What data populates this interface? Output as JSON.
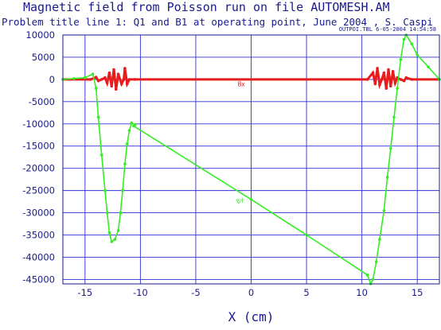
{
  "chart_data": {
    "type": "line",
    "title": "Magnetic field from Poisson run on file AUTOMESH.AM",
    "subtitle": "Problem title line 1: Q1 and B1  at operating point, June 2004 , S. Caspi",
    "file_stamp": "OUTPOI.TBL   6-05-2004  14:54:58",
    "xlabel": "X (cm)",
    "ylabel": "",
    "xlim": [
      -17,
      17
    ],
    "ylim": [
      -46000,
      10000
    ],
    "x_ticks": [
      -15,
      -10,
      -5,
      0,
      5,
      10,
      15
    ],
    "y_ticks": [
      10000,
      5000,
      0,
      -5000,
      -10000,
      -15000,
      -20000,
      -25000,
      -30000,
      -35000,
      -40000,
      -45000
    ],
    "grid": true,
    "series": [
      {
        "name": "Bx",
        "color": "#e81c1c",
        "label_at": [
          -1.2,
          -1500
        ],
        "points": [
          [
            -17,
            0
          ],
          [
            -14.5,
            0
          ],
          [
            -14,
            500
          ],
          [
            -13.8,
            -300
          ],
          [
            -13.5,
            0
          ],
          [
            -13.2,
            400
          ],
          [
            -13.0,
            -800
          ],
          [
            -12.8,
            1500
          ],
          [
            -12.6,
            -1500
          ],
          [
            -12.4,
            2200
          ],
          [
            -12.2,
            -2200
          ],
          [
            -12.0,
            1200
          ],
          [
            -11.7,
            -1000
          ],
          [
            -11.5,
            0
          ],
          [
            -11.4,
            2500
          ],
          [
            -11.2,
            -1000
          ],
          [
            -11.0,
            0
          ],
          [
            -10.5,
            0
          ],
          [
            10.5,
            0
          ],
          [
            11.0,
            1500
          ],
          [
            11.2,
            -1000
          ],
          [
            11.4,
            2500
          ],
          [
            11.6,
            -1200
          ],
          [
            11.8,
            0
          ],
          [
            12.0,
            1500
          ],
          [
            12.2,
            -2000
          ],
          [
            12.4,
            2200
          ],
          [
            12.6,
            -1500
          ],
          [
            12.8,
            1800
          ],
          [
            13.0,
            -800
          ],
          [
            13.2,
            400
          ],
          [
            13.5,
            0
          ],
          [
            13.8,
            -300
          ],
          [
            14.0,
            400
          ],
          [
            14.5,
            0
          ],
          [
            17,
            0
          ]
        ]
      },
      {
        "name": "By",
        "color": "#33ee22",
        "label_at": [
          -1.2,
          -28000
        ],
        "points": [
          [
            -17,
            0
          ],
          [
            -16,
            200
          ],
          [
            -15,
            400
          ],
          [
            -14.3,
            1200
          ],
          [
            -14.0,
            -2000
          ],
          [
            -13.8,
            -8500
          ],
          [
            -13.5,
            -17000
          ],
          [
            -13.2,
            -25000
          ],
          [
            -13.0,
            -30000
          ],
          [
            -12.8,
            -34500
          ],
          [
            -12.6,
            -36500
          ],
          [
            -12.3,
            -36000
          ],
          [
            -12.0,
            -34000
          ],
          [
            -11.8,
            -30000
          ],
          [
            -11.6,
            -25000
          ],
          [
            -11.4,
            -19000
          ],
          [
            -11.2,
            -14500
          ],
          [
            -11.0,
            -11500
          ],
          [
            -10.8,
            -9800
          ],
          [
            -10.5,
            -10200
          ],
          [
            -10.6,
            -10500
          ],
          [
            0,
            -27000
          ],
          [
            5,
            -35000
          ],
          [
            10.5,
            -44000
          ],
          [
            10.8,
            -46000
          ],
          [
            11.0,
            -45000
          ],
          [
            11.3,
            -41000
          ],
          [
            11.6,
            -36000
          ],
          [
            12.0,
            -29500
          ],
          [
            12.3,
            -22000
          ],
          [
            12.6,
            -15500
          ],
          [
            12.9,
            -8500
          ],
          [
            13.2,
            -2000
          ],
          [
            13.5,
            4500
          ],
          [
            13.8,
            9000
          ],
          [
            14.0,
            10000
          ],
          [
            14.5,
            8000
          ],
          [
            15.0,
            5500
          ],
          [
            16.0,
            2800
          ],
          [
            17,
            0
          ]
        ]
      }
    ]
  }
}
